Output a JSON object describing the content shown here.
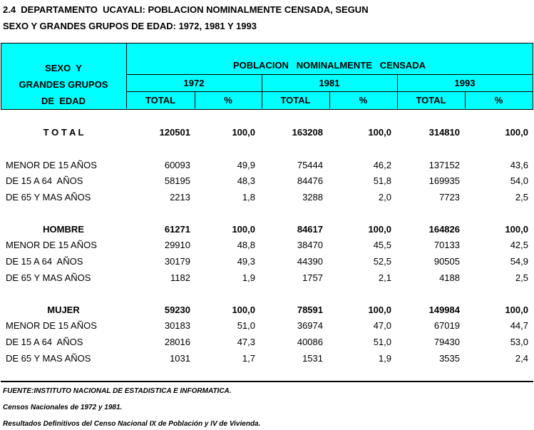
{
  "title": {
    "line1": "2.4  DEPARTAMENTO  UCAYALI: POBLACION NOMINALMENTE CENSADA, SEGUN",
    "line2": "SEXO Y GRANDES GRUPOS DE EDAD: 1972, 1981 Y 1993"
  },
  "header": {
    "row_label": [
      "SEXO  Y",
      "GRANDES GRUPOS",
      "DE  EDAD"
    ],
    "group": "POBLACION   NOMINALMENTE   CENSADA",
    "years": [
      "1972",
      "1981",
      "1993"
    ],
    "subcols": [
      "TOTAL",
      "%",
      "TOTAL",
      "%",
      "TOTAL",
      "%"
    ]
  },
  "sections": [
    {
      "label": "T O T A L",
      "values": [
        "120501",
        "100,0",
        "163208",
        "100,0",
        "314810",
        "100,0"
      ],
      "rows": [
        {
          "label": "MENOR DE 15 AÑOS",
          "values": [
            "60093",
            "49,9",
            "75444",
            "46,2",
            "137152",
            "43,6"
          ]
        },
        {
          "label": "DE 15 A 64  AÑOS",
          "values": [
            "58195",
            "48,3",
            "84476",
            "51,8",
            "169935",
            "54,0"
          ]
        },
        {
          "label": "DE 65 Y MAS AÑOS",
          "values": [
            "2213",
            "1,8",
            "3288",
            "2,0",
            "7723",
            "2,5"
          ]
        }
      ]
    },
    {
      "label": "HOMBRE",
      "values": [
        "61271",
        "100,0",
        "84617",
        "100,0",
        "164826",
        "100,0"
      ],
      "rows": [
        {
          "label": "MENOR DE 15 AÑOS",
          "values": [
            "29910",
            "48,8",
            "38470",
            "45,5",
            "70133",
            "42,5"
          ]
        },
        {
          "label": "DE 15 A 64  AÑOS",
          "values": [
            "30179",
            "49,3",
            "44390",
            "52,5",
            "90505",
            "54,9"
          ]
        },
        {
          "label": "DE 65 Y MAS AÑOS",
          "values": [
            "1182",
            "1,9",
            "1757",
            "2,1",
            "4188",
            "2,5"
          ]
        }
      ]
    },
    {
      "label": "MUJER",
      "values": [
        "59230",
        "100,0",
        "78591",
        "100,0",
        "149984",
        "100,0"
      ],
      "rows": [
        {
          "label": "MENOR DE 15 AÑOS",
          "values": [
            "30183",
            "51,0",
            "36974",
            "47,0",
            "67019",
            "44,7"
          ]
        },
        {
          "label": "DE 15 A 64  AÑOS",
          "values": [
            "28016",
            "47,3",
            "40086",
            "51,0",
            "79430",
            "53,0"
          ]
        },
        {
          "label": "DE 65 Y MAS AÑOS",
          "values": [
            "1031",
            "1,7",
            "1531",
            "1,9",
            "3535",
            "2,4"
          ]
        }
      ]
    }
  ],
  "footnotes": [
    "FUENTE:INSTITUTO NACIONAL DE ESTADISTICA E INFORMATICA.",
    "Censos Nacionales de 1972 y 1981.",
    "Resultados Definitivos del Censo Nacional IX de Población y IV de Vivienda."
  ]
}
